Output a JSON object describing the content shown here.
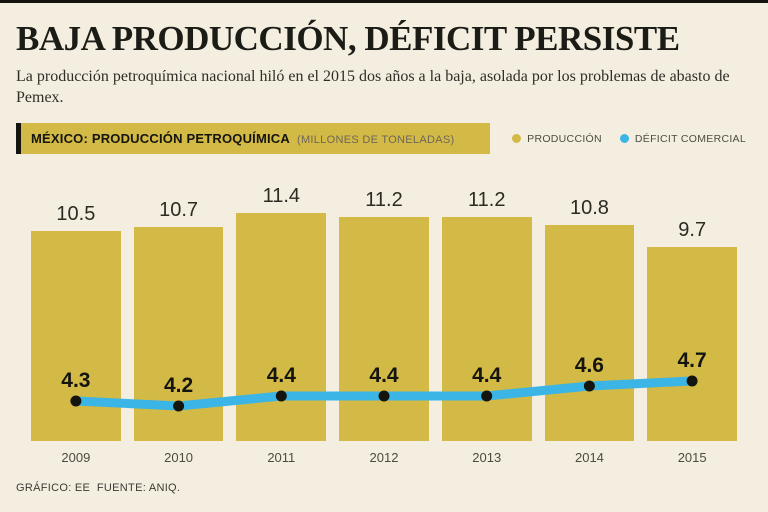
{
  "page": {
    "background": "#f4eee0",
    "top_border_color": "#15150f"
  },
  "header": {
    "title": "BAJA PRODUCCIÓN, DÉFICIT PERSISTE",
    "subtitle": "La producción petroquímica nacional hiló en el 2015 dos años a la baja, asolada por los problemas de abasto de Pemex."
  },
  "chart_header": {
    "title": "MÉXICO: PRODUCCIÓN PETROQUÍMICA",
    "units": "(MILLONES DE TONELADAS)",
    "strip_color": "#d3b945"
  },
  "legend": [
    {
      "label": "PRODUCCIÓN",
      "color": "#d3b945"
    },
    {
      "label": "DÉFICIT COMERCIAL",
      "color": "#3ab5e6"
    }
  ],
  "chart_data": {
    "type": "bar",
    "title": "MÉXICO: PRODUCCIÓN PETROQUÍMICA",
    "units": "MILLONES DE TONELADAS",
    "categories": [
      "2009",
      "2010",
      "2011",
      "2012",
      "2013",
      "2014",
      "2015"
    ],
    "series": [
      {
        "name": "PRODUCCIÓN",
        "type": "bar",
        "color": "#d3b945",
        "values": [
          10.5,
          10.7,
          11.4,
          11.2,
          11.2,
          10.8,
          9.7
        ]
      },
      {
        "name": "DÉFICIT COMERCIAL",
        "type": "line",
        "color": "#3ab5e6",
        "dot_color": "#15150f",
        "values": [
          4.3,
          4.2,
          4.4,
          4.4,
          4.4,
          4.6,
          4.7
        ]
      }
    ],
    "ylim": [
      0,
      12
    ],
    "grid": false,
    "legend_position": "top-right"
  },
  "footer": {
    "credit": "GRÁFICO: EE  FUENTE: ANIQ."
  }
}
